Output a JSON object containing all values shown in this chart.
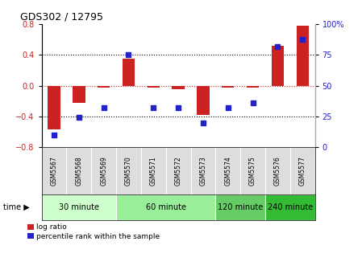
{
  "title": "GDS302 / 12795",
  "samples": [
    "GSM5567",
    "GSM5568",
    "GSM5569",
    "GSM5570",
    "GSM5571",
    "GSM5572",
    "GSM5573",
    "GSM5574",
    "GSM5575",
    "GSM5576",
    "GSM5577"
  ],
  "log_ratio": [
    -0.57,
    -0.22,
    -0.02,
    0.35,
    -0.02,
    -0.05,
    -0.38,
    -0.02,
    -0.02,
    0.52,
    0.78
  ],
  "percentile_rank": [
    10,
    24,
    32,
    75,
    32,
    32,
    20,
    32,
    36,
    82,
    88
  ],
  "groups": [
    {
      "label": "30 minute",
      "start": 0,
      "end": 3,
      "color": "#ccffcc"
    },
    {
      "label": "60 minute",
      "start": 3,
      "end": 7,
      "color": "#99ee99"
    },
    {
      "label": "120 minute",
      "start": 7,
      "end": 9,
      "color": "#66cc66"
    },
    {
      "label": "240 minute",
      "start": 9,
      "end": 11,
      "color": "#33bb33"
    }
  ],
  "bar_color": "#cc2222",
  "dot_color": "#2222cc",
  "ylim_left": [
    -0.8,
    0.8
  ],
  "ylim_right": [
    0,
    100
  ],
  "yticks_left": [
    -0.8,
    -0.4,
    0.0,
    0.4,
    0.8
  ],
  "yticks_right": [
    0,
    25,
    50,
    75,
    100
  ],
  "ytick_labels_right": [
    "0",
    "25",
    "50",
    "75",
    "100%"
  ],
  "hline_dotted_black": [
    -0.4,
    0.4
  ],
  "hline_dotted_red": 0.0,
  "bg_color": "#ffffff",
  "bar_width": 0.5
}
